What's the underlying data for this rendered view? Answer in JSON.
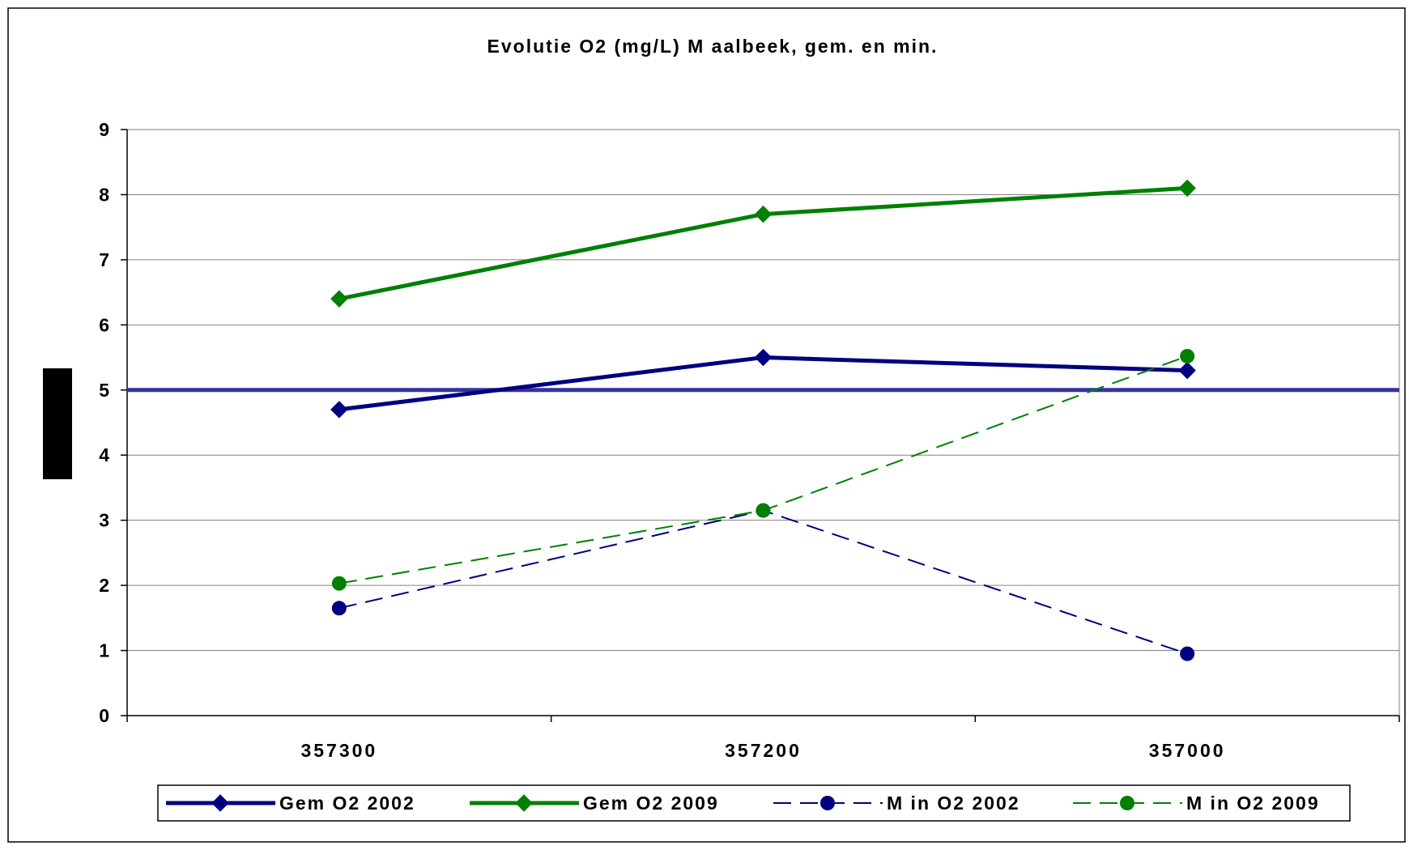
{
  "chart_data": {
    "type": "line",
    "title": "Evolutie O2 (mg/L) M aalbeek, gem. en min.",
    "xlabel": "",
    "ylabel": "",
    "categories": [
      "357300",
      "357200",
      "357000"
    ],
    "ylim": [
      0,
      9
    ],
    "y_ticks": [
      "0",
      "1",
      "2",
      "3",
      "4",
      "5",
      "6",
      "7",
      "8",
      "9"
    ],
    "grid": true,
    "legend_position": "bottom",
    "reference_line": {
      "value": 5,
      "color": "#3333a0"
    },
    "series": [
      {
        "name": "Gem O2 2002",
        "values": [
          4.7,
          5.5,
          5.3
        ],
        "color": "#000080",
        "dashed": false,
        "marker": "diamond"
      },
      {
        "name": "Gem O2 2009",
        "values": [
          6.4,
          7.7,
          8.1
        ],
        "color": "#008000",
        "dashed": false,
        "marker": "diamond"
      },
      {
        "name": "M in O2 2002",
        "values": [
          1.65,
          3.15,
          0.95
        ],
        "color": "#000080",
        "dashed": true,
        "marker": "circle"
      },
      {
        "name": "M in O2 2009",
        "values": [
          2.03,
          3.15,
          5.52
        ],
        "color": "#008000",
        "dashed": true,
        "marker": "circle"
      }
    ]
  }
}
